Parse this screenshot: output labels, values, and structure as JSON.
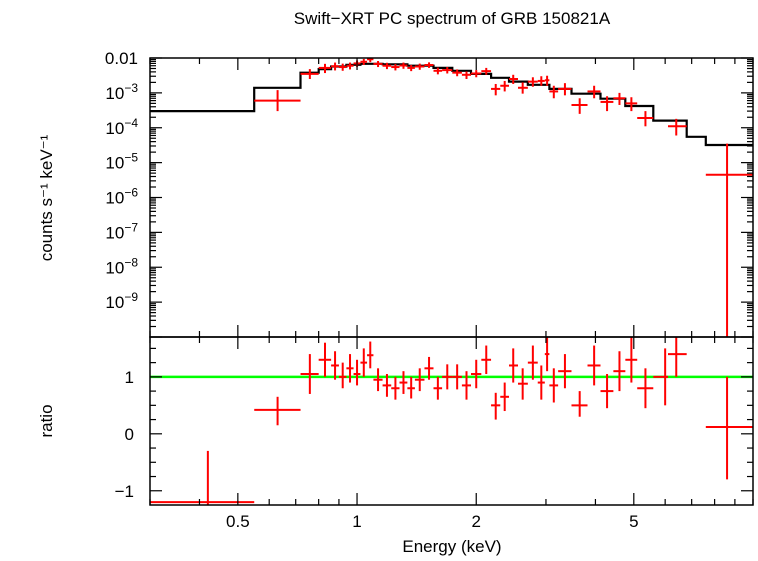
{
  "colors": {
    "data": "#ff0000",
    "model": "#000000",
    "unity": "#00ff00",
    "axes": "#000000"
  },
  "chart_data": [
    {
      "type": "scatter",
      "panel": "spectrum",
      "title": "Swift−XRT PC spectrum of GRB 150821A",
      "xlabel": "",
      "ylabel": "counts s⁻¹ keV⁻¹",
      "xscale": "log",
      "yscale": "log",
      "xlim": [
        0.3,
        10
      ],
      "ylim": [
        1e-10,
        0.01
      ],
      "grid": false,
      "y_ticks": [
        {
          "value": 0.01,
          "base": "0.01",
          "exp": ""
        },
        {
          "value": 0.001,
          "base": "10",
          "exp": "−3"
        },
        {
          "value": 0.0001,
          "base": "10",
          "exp": "−4"
        },
        {
          "value": 1e-05,
          "base": "10",
          "exp": "−5"
        },
        {
          "value": 1e-06,
          "base": "10",
          "exp": "−6"
        },
        {
          "value": 1e-07,
          "base": "10",
          "exp": "−7"
        },
        {
          "value": 1e-08,
          "base": "10",
          "exp": "−8"
        },
        {
          "value": 1e-09,
          "base": "10",
          "exp": "−9"
        }
      ],
      "series": [
        {
          "type": "errorbar",
          "points": [
            {
              "x": 0.63,
              "xlo": 0.55,
              "xhi": 0.72,
              "y": 0.0006,
              "ylo": 0.0003,
              "yhi": 0.0012
            },
            {
              "x": 0.76,
              "xlo": 0.72,
              "xhi": 0.8,
              "y": 0.0035,
              "ylo": 0.0025,
              "yhi": 0.0048
            },
            {
              "x": 0.83,
              "xlo": 0.8,
              "xhi": 0.86,
              "y": 0.0052,
              "ylo": 0.0037,
              "yhi": 0.0068
            },
            {
              "x": 0.88,
              "xlo": 0.86,
              "xhi": 0.9,
              "y": 0.0058,
              "ylo": 0.0044,
              "yhi": 0.0074
            },
            {
              "x": 0.92,
              "xlo": 0.9,
              "xhi": 0.94,
              "y": 0.0055,
              "ylo": 0.0043,
              "yhi": 0.0069
            },
            {
              "x": 0.96,
              "xlo": 0.94,
              "xhi": 0.98,
              "y": 0.006,
              "ylo": 0.0047,
              "yhi": 0.0074
            },
            {
              "x": 1.0,
              "xlo": 0.98,
              "xhi": 1.02,
              "y": 0.007,
              "ylo": 0.0056,
              "yhi": 0.0085
            },
            {
              "x": 1.04,
              "xlo": 1.02,
              "xhi": 1.06,
              "y": 0.0078,
              "ylo": 0.0063,
              "yhi": 0.0094
            },
            {
              "x": 1.08,
              "xlo": 1.06,
              "xhi": 1.1,
              "y": 0.0092,
              "ylo": 0.0076,
              "yhi": 0.011
            },
            {
              "x": 1.13,
              "xlo": 1.1,
              "xhi": 1.16,
              "y": 0.0068,
              "ylo": 0.0055,
              "yhi": 0.0082
            },
            {
              "x": 1.19,
              "xlo": 1.16,
              "xhi": 1.22,
              "y": 0.006,
              "ylo": 0.0048,
              "yhi": 0.0073
            },
            {
              "x": 1.25,
              "xlo": 1.22,
              "xhi": 1.28,
              "y": 0.0055,
              "ylo": 0.0044,
              "yhi": 0.0067
            },
            {
              "x": 1.31,
              "xlo": 1.28,
              "xhi": 1.34,
              "y": 0.0061,
              "ylo": 0.0049,
              "yhi": 0.0074
            },
            {
              "x": 1.37,
              "xlo": 1.34,
              "xhi": 1.4,
              "y": 0.0052,
              "ylo": 0.0042,
              "yhi": 0.0063
            },
            {
              "x": 1.44,
              "xlo": 1.4,
              "xhi": 1.48,
              "y": 0.0057,
              "ylo": 0.0046,
              "yhi": 0.0069
            },
            {
              "x": 1.52,
              "xlo": 1.48,
              "xhi": 1.56,
              "y": 0.0063,
              "ylo": 0.0052,
              "yhi": 0.0075
            },
            {
              "x": 1.6,
              "xlo": 1.56,
              "xhi": 1.64,
              "y": 0.0043,
              "ylo": 0.0034,
              "yhi": 0.0053
            },
            {
              "x": 1.69,
              "xlo": 1.64,
              "xhi": 1.74,
              "y": 0.0045,
              "ylo": 0.0036,
              "yhi": 0.0055
            },
            {
              "x": 1.79,
              "xlo": 1.74,
              "xhi": 1.84,
              "y": 0.0038,
              "ylo": 0.003,
              "yhi": 0.0047
            },
            {
              "x": 1.89,
              "xlo": 1.84,
              "xhi": 1.94,
              "y": 0.0033,
              "ylo": 0.0025,
              "yhi": 0.0041
            },
            {
              "x": 2.0,
              "xlo": 1.94,
              "xhi": 2.06,
              "y": 0.0036,
              "ylo": 0.0028,
              "yhi": 0.0045
            },
            {
              "x": 2.12,
              "xlo": 2.06,
              "xhi": 2.18,
              "y": 0.0042,
              "ylo": 0.0033,
              "yhi": 0.0052
            },
            {
              "x": 2.24,
              "xlo": 2.18,
              "xhi": 2.3,
              "y": 0.0013,
              "ylo": 0.00085,
              "yhi": 0.0018
            },
            {
              "x": 2.36,
              "xlo": 2.3,
              "xhi": 2.42,
              "y": 0.0016,
              "ylo": 0.0011,
              "yhi": 0.0022
            },
            {
              "x": 2.48,
              "xlo": 2.42,
              "xhi": 2.55,
              "y": 0.0025,
              "ylo": 0.0018,
              "yhi": 0.0033
            },
            {
              "x": 2.62,
              "xlo": 2.55,
              "xhi": 2.7,
              "y": 0.0014,
              "ylo": 0.00095,
              "yhi": 0.002
            },
            {
              "x": 2.78,
              "xlo": 2.7,
              "xhi": 2.86,
              "y": 0.0021,
              "ylo": 0.0015,
              "yhi": 0.0028
            },
            {
              "x": 2.92,
              "xlo": 2.86,
              "xhi": 2.98,
              "y": 0.0022,
              "ylo": 0.0016,
              "yhi": 0.003
            },
            {
              "x": 3.02,
              "xlo": 2.98,
              "xhi": 3.06,
              "y": 0.0023,
              "ylo": 0.0016,
              "yhi": 0.0031
            },
            {
              "x": 3.14,
              "xlo": 3.06,
              "xhi": 3.22,
              "y": 0.0011,
              "ylo": 0.0007,
              "yhi": 0.0016
            },
            {
              "x": 3.35,
              "xlo": 3.22,
              "xhi": 3.48,
              "y": 0.0013,
              "ylo": 0.00085,
              "yhi": 0.0019
            },
            {
              "x": 3.65,
              "xlo": 3.48,
              "xhi": 3.82,
              "y": 0.00045,
              "ylo": 0.00025,
              "yhi": 0.0007
            },
            {
              "x": 3.97,
              "xlo": 3.82,
              "xhi": 4.12,
              "y": 0.0011,
              "ylo": 0.0007,
              "yhi": 0.0016
            },
            {
              "x": 4.28,
              "xlo": 4.12,
              "xhi": 4.44,
              "y": 0.00055,
              "ylo": 0.0003,
              "yhi": 0.0008
            },
            {
              "x": 4.6,
              "xlo": 4.44,
              "xhi": 4.76,
              "y": 0.0007,
              "ylo": 0.00045,
              "yhi": 0.001
            },
            {
              "x": 4.93,
              "xlo": 4.76,
              "xhi": 5.1,
              "y": 0.0005,
              "ylo": 0.0003,
              "yhi": 0.00075
            },
            {
              "x": 5.35,
              "xlo": 5.1,
              "xhi": 5.6,
              "y": 0.00019,
              "ylo": 0.00011,
              "yhi": 0.0003
            },
            {
              "x": 6.4,
              "xlo": 6.1,
              "xhi": 6.8,
              "y": 0.00011,
              "ylo": 6e-05,
              "yhi": 0.00018
            },
            {
              "x": 8.6,
              "xlo": 7.6,
              "xhi": 10.0,
              "y": 4.5e-06,
              "ylo": 1e-10,
              "yhi": 3.5e-05
            }
          ]
        },
        {
          "type": "step",
          "bins": [
            {
              "x0": 0.3,
              "x1": 0.55,
              "y": 0.0003
            },
            {
              "x0": 0.55,
              "x1": 0.72,
              "y": 0.0014
            },
            {
              "x0": 0.72,
              "x1": 0.8,
              "y": 0.0038
            },
            {
              "x0": 0.8,
              "x1": 0.86,
              "y": 0.0048
            },
            {
              "x0": 0.86,
              "x1": 0.94,
              "y": 0.0057
            },
            {
              "x0": 0.94,
              "x1": 1.02,
              "y": 0.0064
            },
            {
              "x0": 1.02,
              "x1": 1.16,
              "y": 0.0068
            },
            {
              "x0": 1.16,
              "x1": 1.34,
              "y": 0.0066
            },
            {
              "x0": 1.34,
              "x1": 1.56,
              "y": 0.006
            },
            {
              "x0": 1.56,
              "x1": 1.74,
              "y": 0.0052
            },
            {
              "x0": 1.74,
              "x1": 1.94,
              "y": 0.0043
            },
            {
              "x0": 1.94,
              "x1": 2.18,
              "y": 0.0035
            },
            {
              "x0": 2.18,
              "x1": 2.42,
              "y": 0.0027
            },
            {
              "x0": 2.42,
              "x1": 2.7,
              "y": 0.0021
            },
            {
              "x0": 2.7,
              "x1": 3.06,
              "y": 0.0017
            },
            {
              "x0": 3.06,
              "x1": 3.48,
              "y": 0.0013
            },
            {
              "x0": 3.48,
              "x1": 4.12,
              "y": 0.00095
            },
            {
              "x0": 4.12,
              "x1": 4.76,
              "y": 0.00068
            },
            {
              "x0": 4.76,
              "x1": 5.6,
              "y": 0.00042
            },
            {
              "x0": 5.6,
              "x1": 6.8,
              "y": 0.00016
            },
            {
              "x0": 6.8,
              "x1": 7.6,
              "y": 5.5e-05
            },
            {
              "x0": 7.6,
              "x1": 10.0,
              "y": 3.2e-05
            }
          ]
        }
      ]
    },
    {
      "type": "scatter",
      "panel": "ratio",
      "xlabel": "Energy (keV)",
      "ylabel": "ratio",
      "xscale": "log",
      "xlim": [
        0.3,
        10
      ],
      "ylim": [
        -1.25,
        1.7
      ],
      "x_ticks": [
        {
          "value": 0.5,
          "label": "0.5"
        },
        {
          "value": 1,
          "label": "1"
        },
        {
          "value": 2,
          "label": "2"
        },
        {
          "value": 5,
          "label": "5"
        }
      ],
      "y_ticks": [
        {
          "value": 1,
          "label": "1"
        },
        {
          "value": 0,
          "label": "0"
        },
        {
          "value": -1,
          "label": "−1"
        }
      ],
      "reference_line": 1,
      "series": [
        {
          "type": "errorbar",
          "points": [
            {
              "x": 0.42,
              "xlo": 0.3,
              "xhi": 0.55,
              "y": -1.2,
              "ylo": -1.25,
              "yhi": -0.3
            },
            {
              "x": 0.63,
              "xlo": 0.55,
              "xhi": 0.72,
              "y": 0.42,
              "ylo": 0.15,
              "yhi": 0.65
            },
            {
              "x": 0.76,
              "xlo": 0.72,
              "xhi": 0.8,
              "y": 1.05,
              "ylo": 0.7,
              "yhi": 1.4
            },
            {
              "x": 0.83,
              "xlo": 0.8,
              "xhi": 0.86,
              "y": 1.3,
              "ylo": 1.0,
              "yhi": 1.6
            },
            {
              "x": 0.88,
              "xlo": 0.86,
              "xhi": 0.9,
              "y": 1.2,
              "ylo": 0.95,
              "yhi": 1.45
            },
            {
              "x": 0.92,
              "xlo": 0.9,
              "xhi": 0.94,
              "y": 1.0,
              "ylo": 0.8,
              "yhi": 1.25
            },
            {
              "x": 0.96,
              "xlo": 0.94,
              "xhi": 0.98,
              "y": 1.15,
              "ylo": 0.9,
              "yhi": 1.4
            },
            {
              "x": 1.0,
              "xlo": 0.98,
              "xhi": 1.02,
              "y": 1.05,
              "ylo": 0.85,
              "yhi": 1.3
            },
            {
              "x": 1.04,
              "xlo": 1.02,
              "xhi": 1.06,
              "y": 1.25,
              "ylo": 1.0,
              "yhi": 1.5
            },
            {
              "x": 1.08,
              "xlo": 1.06,
              "xhi": 1.1,
              "y": 1.38,
              "ylo": 1.15,
              "yhi": 1.62
            },
            {
              "x": 1.13,
              "xlo": 1.1,
              "xhi": 1.16,
              "y": 0.95,
              "ylo": 0.75,
              "yhi": 1.15
            },
            {
              "x": 1.19,
              "xlo": 1.16,
              "xhi": 1.22,
              "y": 0.85,
              "ylo": 0.65,
              "yhi": 1.05
            },
            {
              "x": 1.25,
              "xlo": 1.22,
              "xhi": 1.28,
              "y": 0.8,
              "ylo": 0.6,
              "yhi": 1.0
            },
            {
              "x": 1.31,
              "xlo": 1.28,
              "xhi": 1.34,
              "y": 0.9,
              "ylo": 0.7,
              "yhi": 1.1
            },
            {
              "x": 1.37,
              "xlo": 1.34,
              "xhi": 1.4,
              "y": 0.8,
              "ylo": 0.62,
              "yhi": 1.0
            },
            {
              "x": 1.44,
              "xlo": 1.4,
              "xhi": 1.48,
              "y": 0.95,
              "ylo": 0.75,
              "yhi": 1.15
            },
            {
              "x": 1.52,
              "xlo": 1.48,
              "xhi": 1.56,
              "y": 1.15,
              "ylo": 0.95,
              "yhi": 1.35
            },
            {
              "x": 1.6,
              "xlo": 1.56,
              "xhi": 1.64,
              "y": 0.8,
              "ylo": 0.6,
              "yhi": 1.0
            },
            {
              "x": 1.69,
              "xlo": 1.64,
              "xhi": 1.74,
              "y": 1.0,
              "ylo": 0.78,
              "yhi": 1.22
            },
            {
              "x": 1.79,
              "xlo": 1.74,
              "xhi": 1.84,
              "y": 1.0,
              "ylo": 0.78,
              "yhi": 1.22
            },
            {
              "x": 1.89,
              "xlo": 1.84,
              "xhi": 1.94,
              "y": 0.85,
              "ylo": 0.6,
              "yhi": 1.1
            },
            {
              "x": 2.0,
              "xlo": 1.94,
              "xhi": 2.06,
              "y": 1.05,
              "ylo": 0.8,
              "yhi": 1.3
            },
            {
              "x": 2.12,
              "xlo": 2.06,
              "xhi": 2.18,
              "y": 1.3,
              "ylo": 1.05,
              "yhi": 1.55
            },
            {
              "x": 2.24,
              "xlo": 2.18,
              "xhi": 2.3,
              "y": 0.5,
              "ylo": 0.25,
              "yhi": 0.72
            },
            {
              "x": 2.36,
              "xlo": 2.3,
              "xhi": 2.42,
              "y": 0.65,
              "ylo": 0.4,
              "yhi": 0.9
            },
            {
              "x": 2.48,
              "xlo": 2.42,
              "xhi": 2.55,
              "y": 1.2,
              "ylo": 0.9,
              "yhi": 1.5
            },
            {
              "x": 2.62,
              "xlo": 2.55,
              "xhi": 2.7,
              "y": 0.88,
              "ylo": 0.6,
              "yhi": 1.15
            },
            {
              "x": 2.78,
              "xlo": 2.7,
              "xhi": 2.86,
              "y": 1.25,
              "ylo": 0.95,
              "yhi": 1.55
            },
            {
              "x": 2.92,
              "xlo": 2.86,
              "xhi": 2.98,
              "y": 0.9,
              "ylo": 0.6,
              "yhi": 1.2
            },
            {
              "x": 3.02,
              "xlo": 2.98,
              "xhi": 3.06,
              "y": 1.4,
              "ylo": 1.1,
              "yhi": 1.7
            },
            {
              "x": 3.14,
              "xlo": 3.06,
              "xhi": 3.22,
              "y": 0.85,
              "ylo": 0.55,
              "yhi": 1.15
            },
            {
              "x": 3.35,
              "xlo": 3.22,
              "xhi": 3.48,
              "y": 1.1,
              "ylo": 0.8,
              "yhi": 1.4
            },
            {
              "x": 3.65,
              "xlo": 3.48,
              "xhi": 3.82,
              "y": 0.5,
              "ylo": 0.3,
              "yhi": 0.75
            },
            {
              "x": 3.97,
              "xlo": 3.82,
              "xhi": 4.12,
              "y": 1.2,
              "ylo": 0.85,
              "yhi": 1.55
            },
            {
              "x": 4.28,
              "xlo": 4.12,
              "xhi": 4.44,
              "y": 0.75,
              "ylo": 0.45,
              "yhi": 1.05
            },
            {
              "x": 4.6,
              "xlo": 4.44,
              "xhi": 4.76,
              "y": 1.1,
              "ylo": 0.75,
              "yhi": 1.45
            },
            {
              "x": 4.93,
              "xlo": 4.76,
              "xhi": 5.1,
              "y": 1.3,
              "ylo": 0.9,
              "yhi": 1.7
            },
            {
              "x": 5.35,
              "xlo": 5.1,
              "xhi": 5.6,
              "y": 0.8,
              "ylo": 0.45,
              "yhi": 1.15
            },
            {
              "x": 6.0,
              "xlo": 5.6,
              "xhi": 6.1,
              "y": 1.0,
              "ylo": 0.5,
              "yhi": 1.5
            },
            {
              "x": 6.4,
              "xlo": 6.1,
              "xhi": 6.8,
              "y": 1.4,
              "ylo": 1.0,
              "yhi": 1.7
            },
            {
              "x": 8.6,
              "xlo": 7.6,
              "xhi": 10.0,
              "y": 0.12,
              "ylo": -0.8,
              "yhi": 1.0
            }
          ]
        }
      ]
    }
  ]
}
